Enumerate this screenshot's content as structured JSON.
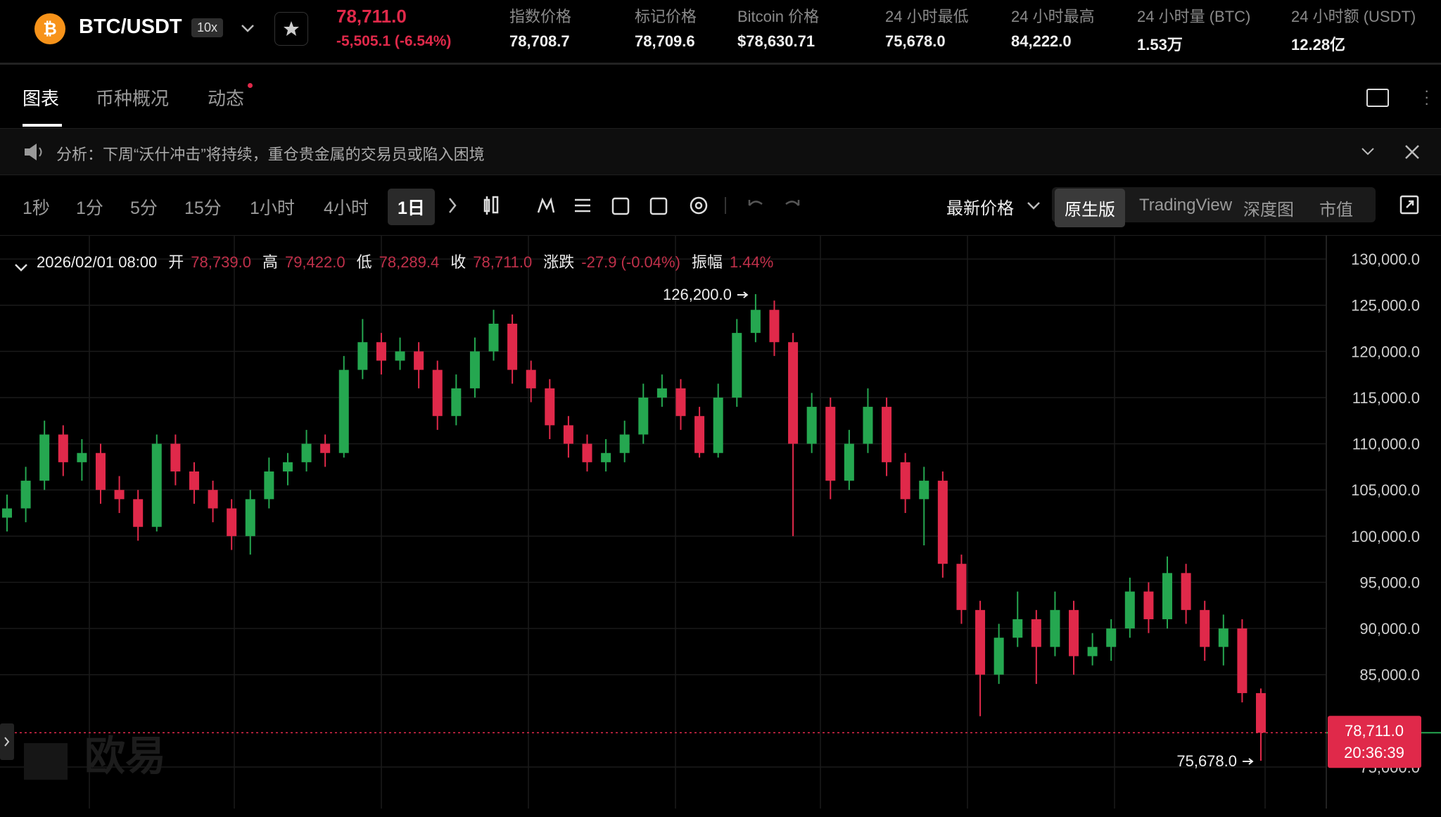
{
  "header": {
    "symbol": "BTC/USDT",
    "leverage": "10x",
    "last_price": "78,711.0",
    "change": "-5,505.1 (-6.54%)",
    "stats": [
      {
        "label": "指数价格",
        "value": "78,708.7"
      },
      {
        "label": "标记价格",
        "value": "78,709.6"
      },
      {
        "label": "Bitcoin 价格",
        "value": "$78,630.71"
      },
      {
        "label": "24 小时最低",
        "value": "75,678.0"
      },
      {
        "label": "24 小时最高",
        "value": "84,222.0"
      },
      {
        "label": "24 小时量 (BTC)",
        "value": "1.53万"
      },
      {
        "label": "24 小时额 (USDT)",
        "value": "12.28亿"
      }
    ]
  },
  "tabs": [
    "图表",
    "币种概况",
    "动态"
  ],
  "announcement": "分析：下周“沃什冲击”将持续，重仓贵金属的交易员或陷入困境",
  "toolbar": {
    "intervals": [
      "1秒",
      "1分",
      "5分",
      "15分",
      "1小时",
      "4小时",
      "1日"
    ],
    "price_type": "最新价格",
    "views": [
      "原生版",
      "TradingView",
      "深度图",
      "市值"
    ]
  },
  "ohlc_info": {
    "date": "2026/02/01 08:00",
    "items": [
      {
        "label": "开",
        "value": "78,739.0"
      },
      {
        "label": "高",
        "value": "79,422.0"
      },
      {
        "label": "低",
        "value": "78,289.4"
      },
      {
        "label": "收",
        "value": "78,711.0"
      },
      {
        "label": "涨跌",
        "value": "-27.9 (-0.04%)"
      },
      {
        "label": "振幅",
        "value": "1.44%"
      }
    ]
  },
  "watermark": "欧易",
  "chart_data": {
    "type": "candlestick",
    "up_color": "#25a750",
    "down_color": "#e0294a",
    "ylim": [
      70500,
      132600
    ],
    "yticks": [
      {
        "value": 130000,
        "label": "130,000.0"
      },
      {
        "value": 125000,
        "label": "125,000.0"
      },
      {
        "value": 120000,
        "label": "120,000.0"
      },
      {
        "value": 115000,
        "label": "115,000.0"
      },
      {
        "value": 110000,
        "label": "110,000.0"
      },
      {
        "value": 105000,
        "label": "105,000.0"
      },
      {
        "value": 100000,
        "label": "100,000.0"
      },
      {
        "value": 95000,
        "label": "95,000.0"
      },
      {
        "value": 90000,
        "label": "90,000.0"
      },
      {
        "value": 85000,
        "label": "85,000.0"
      },
      {
        "value": 75000,
        "label": "75,000.0"
      }
    ],
    "open": [
      102000,
      103000,
      106000,
      111000,
      108000,
      109000,
      105000,
      104000,
      101000,
      110000,
      107000,
      105000,
      103000,
      100000,
      104000,
      107000,
      108000,
      110000,
      109000,
      118000,
      121000,
      119000,
      120000,
      118000,
      113000,
      116000,
      120000,
      123000,
      118000,
      116000,
      112000,
      110000,
      108000,
      109000,
      111000,
      115000,
      116000,
      113000,
      109000,
      115000,
      122000,
      124500,
      121000,
      110000,
      114000,
      106000,
      110000,
      114000,
      108000,
      104000,
      106000,
      97000,
      92000,
      85000,
      89000,
      91000,
      88000,
      92000,
      87000,
      88000,
      90000,
      94000,
      91000,
      96000,
      92000,
      88000,
      90000,
      83000
    ],
    "high": [
      104500,
      107500,
      112500,
      112000,
      110500,
      110000,
      106500,
      105000,
      111000,
      111000,
      108000,
      106000,
      104000,
      105000,
      108500,
      109000,
      111500,
      111000,
      119500,
      123500,
      122000,
      121500,
      121000,
      119000,
      117500,
      121500,
      124500,
      124000,
      119000,
      117000,
      113000,
      111000,
      110500,
      112500,
      116500,
      117500,
      117000,
      114000,
      116500,
      123500,
      126200,
      125500,
      122000,
      115500,
      115000,
      111500,
      116000,
      115000,
      109000,
      107500,
      107000,
      98000,
      93000,
      90500,
      94000,
      92000,
      94000,
      93000,
      89500,
      91000,
      95500,
      95000,
      97800,
      97000,
      93000,
      91500,
      91000,
      83500
    ],
    "low": [
      100500,
      101500,
      105000,
      106500,
      106000,
      103500,
      102500,
      99500,
      100500,
      105500,
      103500,
      101500,
      98500,
      98000,
      103000,
      105500,
      107000,
      107500,
      108500,
      117000,
      117500,
      118000,
      116000,
      111500,
      112000,
      115000,
      119000,
      116500,
      114500,
      110500,
      108500,
      107000,
      107000,
      108000,
      110000,
      114000,
      111500,
      108500,
      108500,
      114000,
      121000,
      119500,
      100000,
      109000,
      104000,
      105000,
      109000,
      106500,
      102500,
      99000,
      95500,
      90500,
      80500,
      84000,
      88000,
      84000,
      87000,
      85000,
      86000,
      86500,
      89000,
      89500,
      90000,
      90500,
      86500,
      86000,
      82000,
      75678
    ],
    "close": [
      103000,
      106000,
      111000,
      108000,
      109000,
      105000,
      104000,
      101000,
      110000,
      107000,
      105000,
      103000,
      100000,
      104000,
      107000,
      108000,
      110000,
      109000,
      118000,
      121000,
      119000,
      120000,
      118000,
      113000,
      116000,
      120000,
      123000,
      118000,
      116000,
      112000,
      110000,
      108000,
      109000,
      111000,
      115000,
      116000,
      113000,
      109000,
      115000,
      122000,
      124500,
      121000,
      110000,
      114000,
      106000,
      110000,
      114000,
      108000,
      104000,
      106000,
      97000,
      92000,
      85000,
      89000,
      91000,
      88000,
      92000,
      87000,
      88000,
      90000,
      94000,
      91000,
      96000,
      92000,
      88000,
      90000,
      83000,
      78711
    ],
    "high_annotation": {
      "value": 126200,
      "label": "126,200.0"
    },
    "low_annotation": {
      "value": 75678,
      "label": "75,678.0"
    },
    "current_price": {
      "value": 78711,
      "label": "78,711.0"
    },
    "countdown": "20:36:39"
  }
}
